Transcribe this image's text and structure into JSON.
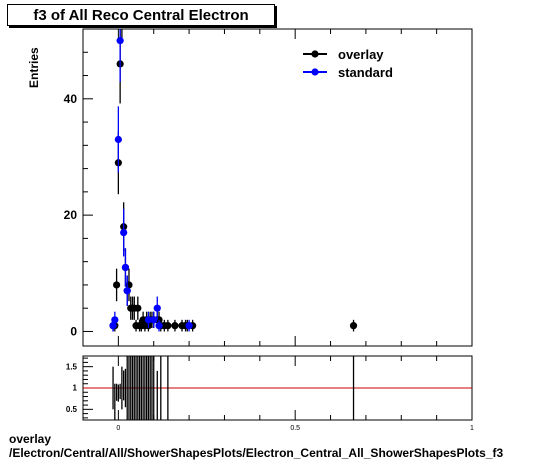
{
  "title": "f3 of All Reco Central Electron",
  "footer": {
    "line1": "overlay",
    "line2": "/Electron/Central/All/ShowerShapesPlots/Electron_Central_All_ShowerShapesPlots_f3"
  },
  "chart_data": [
    {
      "type": "scatter",
      "ylabel": "Entries",
      "xlim": [
        -0.1,
        1.0
      ],
      "ylim": [
        -2.5,
        52
      ],
      "yticks": [
        0,
        20,
        40
      ],
      "xticks": [
        0,
        0.5,
        1
      ],
      "xtick_labels": [
        "0",
        "0.5",
        "1"
      ],
      "legend_position": "top-right",
      "colors": {
        "overlay": "#000000",
        "standard": "#0000ff"
      },
      "series": [
        {
          "name": "overlay",
          "x": [
            -0.015,
            -0.01,
            -0.005,
            0.0,
            0.005,
            0.01,
            0.015,
            0.02,
            0.025,
            0.03,
            0.035,
            0.04,
            0.045,
            0.05,
            0.055,
            0.06,
            0.065,
            0.07,
            0.075,
            0.08,
            0.085,
            0.09,
            0.095,
            0.1,
            0.11,
            0.115,
            0.12,
            0.13,
            0.14,
            0.16,
            0.18,
            0.19,
            0.195,
            0.21,
            0.665
          ],
          "y": [
            1,
            1,
            8,
            29,
            46,
            58,
            18,
            11,
            7,
            8,
            4,
            4,
            4,
            1,
            4,
            1,
            1,
            2,
            1,
            2,
            1,
            2,
            2,
            2,
            2,
            2,
            1,
            1,
            1,
            1,
            1,
            1,
            1,
            1,
            1
          ],
          "yerr": [
            1,
            1,
            2.8,
            5.4,
            6.8,
            7.6,
            4.2,
            3.3,
            2.6,
            2.8,
            2,
            2,
            2,
            1,
            2,
            1,
            1,
            1.4,
            1,
            1.4,
            1,
            1.4,
            1.4,
            1.4,
            1.4,
            1.4,
            1,
            1,
            1,
            1,
            1,
            1,
            1,
            1,
            1
          ]
        },
        {
          "name": "standard",
          "x": [
            -0.015,
            -0.01,
            0.0,
            0.005,
            0.015,
            0.02,
            0.025,
            0.085,
            0.1,
            0.11,
            0.115,
            0.2
          ],
          "y": [
            1,
            2,
            33,
            50,
            17,
            11,
            7,
            2,
            2,
            4,
            1,
            1
          ],
          "yerr": [
            1,
            1.4,
            5.7,
            7.1,
            4.1,
            3.3,
            2.6,
            1.4,
            1.4,
            2,
            1,
            1
          ]
        }
      ]
    },
    {
      "type": "scatter",
      "xlim": [
        -0.1,
        1.0
      ],
      "ylim": [
        0.25,
        1.75
      ],
      "yticks": [
        0.5,
        1,
        1.5
      ],
      "ytick_labels": [
        "0.5",
        "1",
        "1.5"
      ],
      "xticks": [
        0,
        0.5,
        1
      ],
      "xtick_labels": [
        "0",
        "0.5",
        "1"
      ],
      "reference_line": 1,
      "colors": {
        "ratio": "#000000",
        "reference": "#cc0000"
      },
      "series": [
        {
          "name": "",
          "x": [
            -0.015,
            -0.01,
            -0.005,
            0.0,
            0.005,
            0.01,
            0.015,
            0.02,
            0.025,
            0.03,
            0.035,
            0.04,
            0.045,
            0.05,
            0.055,
            0.06,
            0.065,
            0.07,
            0.075,
            0.08,
            0.085,
            0.09,
            0.095,
            0.1,
            0.11,
            0.12,
            0.14,
            0.665
          ],
          "y": [
            1.0,
            0.5,
            0.9,
            0.88,
            0.92,
            1.0,
            1.06,
            1.0,
            1.0,
            1.0,
            1.0,
            1.0,
            1.0,
            1.0,
            1.0,
            1.0,
            1.0,
            1.0,
            1.0,
            1.0,
            1.0,
            1.0,
            1.0,
            1.0,
            0.5,
            1.0,
            1.0,
            1.0
          ],
          "yerr": [
            0.5,
            0.6,
            0.2,
            0.2,
            0.18,
            0.5,
            0.35,
            0.45,
            0.9,
            0.9,
            0.9,
            0.9,
            0.9,
            0.9,
            0.9,
            0.9,
            0.9,
            0.9,
            0.9,
            0.9,
            0.9,
            0.9,
            0.9,
            0.9,
            0.9,
            0.9,
            0.9,
            0.9
          ]
        }
      ]
    }
  ]
}
